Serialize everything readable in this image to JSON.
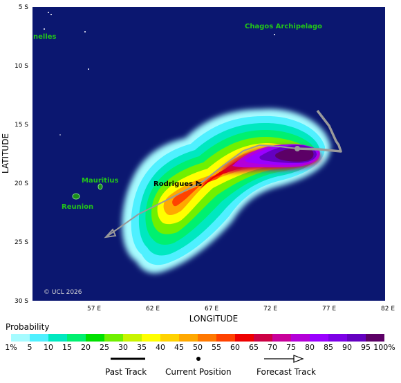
{
  "map": {
    "latitude_labels": [
      "5 S",
      "10 S",
      "15 S",
      "20 S",
      "25 S",
      "30 S"
    ],
    "longitude_labels": [
      "57 E",
      "62 E",
      "67 E",
      "72 E",
      "77 E",
      "82 E"
    ],
    "xlabel": "LONGITUDE",
    "ylabel": "LATITUDE",
    "places": {
      "chagos": "Chagos Archipelago",
      "seychelles": "nelles",
      "mauritius": "Mauritius",
      "reunion": "Reunion",
      "rodrigues": "Rodrigues Is"
    },
    "copyright": "© UCL 2026",
    "colors": {
      "ocean": "#0b1770",
      "land": "#1a8c1a",
      "past_track": "#9a9a9a",
      "forecast_track": "#9a9a9a"
    }
  },
  "legend": {
    "title": "Probability",
    "levels": [
      "1%",
      "5",
      "10",
      "15",
      "20",
      "25",
      "30",
      "35",
      "40",
      "45",
      "50",
      "55",
      "60",
      "65",
      "70",
      "75",
      "80",
      "85",
      "90",
      "95",
      "100%"
    ],
    "colors": [
      "#a6fbff",
      "#4ff0ff",
      "#00e8c0",
      "#00f070",
      "#00e000",
      "#70f000",
      "#c8f400",
      "#ffff00",
      "#ffd200",
      "#ffa800",
      "#ff7800",
      "#ff4200",
      "#ee0000",
      "#cc0044",
      "#c8009a",
      "#b400d8",
      "#9a00ff",
      "#7c00e6",
      "#6400c0",
      "#5c0066"
    ],
    "past_track": "Past Track",
    "current_position": "Current Position",
    "forecast_track": "Forecast Track"
  }
}
